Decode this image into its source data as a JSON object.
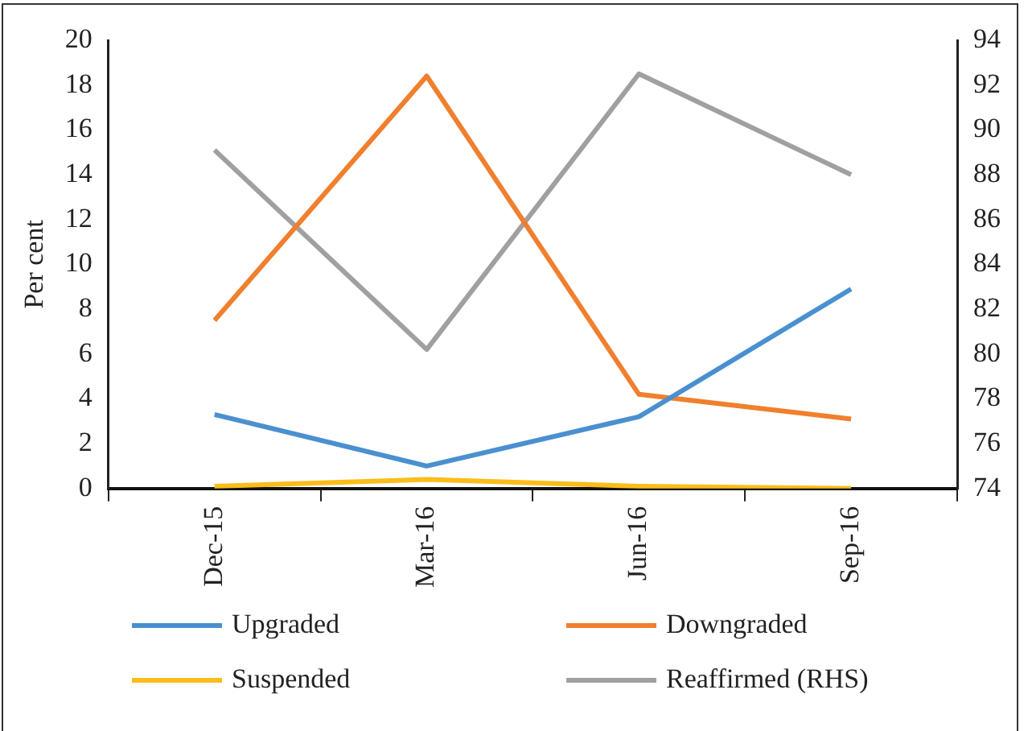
{
  "chart_data": {
    "type": "line",
    "ylabel": "Per cent",
    "categories": [
      "Dec-15",
      "Mar-16",
      "Jun-16",
      "Sep-16"
    ],
    "ylim": [
      0,
      20
    ],
    "yticks": [
      0,
      2,
      4,
      6,
      8,
      10,
      12,
      14,
      16,
      18,
      20
    ],
    "y2lim": [
      74,
      94
    ],
    "y2ticks": [
      74,
      76,
      78,
      80,
      82,
      84,
      86,
      88,
      90,
      92,
      94
    ],
    "grid": false,
    "legend": "bottom",
    "marker": "none",
    "series": [
      {
        "name": "Upgraded",
        "color": "#4a90d0",
        "values": [
          3.3,
          1.0,
          3.2,
          8.9
        ]
      },
      {
        "name": "Downgraded",
        "color": "#f07f2e",
        "values": [
          7.5,
          18.4,
          4.2,
          3.1
        ]
      },
      {
        "name": "Suspended",
        "color": "#fbbd1a",
        "values": [
          0.1,
          0.4,
          0.1,
          0.0
        ]
      },
      {
        "name": "Reaffirmed (RHS)",
        "color": "#a0a0a2",
        "values": [
          89.1,
          80.2,
          92.5,
          88.0
        ],
        "axis": "y2"
      }
    ]
  }
}
